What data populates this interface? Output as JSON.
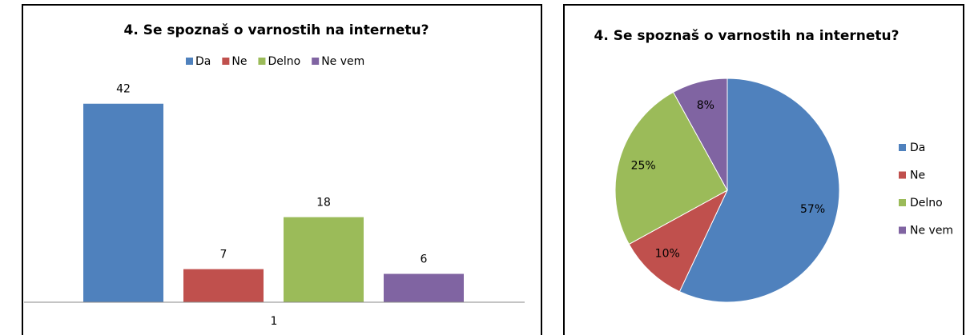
{
  "chart_data": [
    {
      "type": "bar",
      "title": "4. Se spoznaš o varnostih na internetu?",
      "categories": [
        "1"
      ],
      "series": [
        {
          "name": "Da",
          "color": "#4f81bd",
          "values": [
            42
          ]
        },
        {
          "name": "Ne",
          "color": "#c0504d",
          "values": [
            7
          ]
        },
        {
          "name": "Delno",
          "color": "#9bbb59",
          "values": [
            18
          ]
        },
        {
          "name": "Ne vem",
          "color": "#8064a2",
          "values": [
            6
          ]
        }
      ],
      "ylim": [
        0,
        45
      ],
      "legend": "top"
    },
    {
      "type": "pie",
      "title": "4. Se spoznaš o varnostih na internetu?",
      "categories": [
        "Da",
        "Ne",
        "Delno",
        "Ne vem"
      ],
      "values": [
        57,
        10,
        25,
        8
      ],
      "value_labels": [
        "57%",
        "10%",
        "25%",
        "8%"
      ],
      "colors": [
        "#4f81bd",
        "#c0504d",
        "#9bbb59",
        "#8064a2"
      ],
      "legend": "right"
    }
  ]
}
